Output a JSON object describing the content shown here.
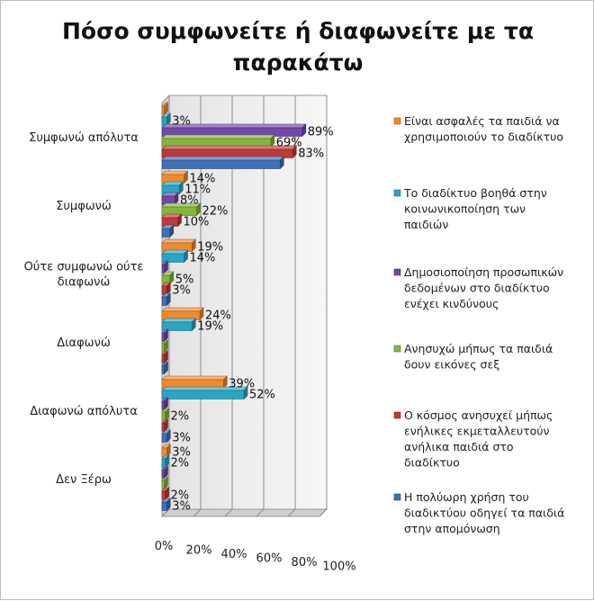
{
  "chart_data": {
    "type": "bar",
    "orientation": "horizontal",
    "title_lines": [
      "Πόσο συμφωνείτε ή διαφωνείτε με τα",
      "παρακάτω"
    ],
    "categories": [
      "Συμφωνώ απόλυτα",
      "Συμφωνώ",
      "Ούτε συμφωνώ ούτε διαφωνώ",
      "Διαφωνώ",
      "Διαφωνώ απόλυτα",
      "Δεν Ξέρω"
    ],
    "category_label_lines": [
      [
        "Συμφωνώ απόλυτα"
      ],
      [
        "Συμφωνώ"
      ],
      [
        "Ούτε συμφωνώ ούτε",
        "διαφωνώ"
      ],
      [
        "Διαφωνώ"
      ],
      [
        "Διαφωνώ απόλυτα"
      ],
      [
        "Δεν Ξέρω"
      ]
    ],
    "series": [
      {
        "name": "Είναι ασφαλές τα παιδιά να χρησιμοποιούν το διαδίκτυο",
        "legend_lines": [
          "Είναι ασφαλές τα παιδιά να",
          "χρησιμοποιούν το διαδίκτυο"
        ],
        "color": "#f08a2c",
        "values": [
          1,
          14,
          19,
          24,
          39,
          3
        ],
        "labels": [
          "",
          "14%",
          "19%",
          "24%",
          "39%",
          "3%"
        ]
      },
      {
        "name": "Το διαδίκτυο βοηθά στην κοινωνικοποίηση των παιδιών",
        "legend_lines": [
          "Το διαδίκτυο βοηθά στην",
          "κοινωνικοποίηση των",
          "παιδιών"
        ],
        "color": "#2aa6c2",
        "values": [
          3,
          11,
          14,
          19,
          52,
          2
        ],
        "labels": [
          "3%",
          "11%",
          "14%",
          "19%",
          "52%",
          "2%"
        ]
      },
      {
        "name": "Δημοσιοποίηση προσωπικών δεδομένων στο διαδίκτυο ενέχει κινδύνους",
        "legend_lines": [
          "Δημοσιοποίηση προσωπικών",
          "δεδομένων στο διαδίκτυο",
          "ενέχει κινδύνους"
        ],
        "color": "#7248a8",
        "values": [
          89,
          8,
          0,
          0,
          0,
          0
        ],
        "labels": [
          "89%",
          "8%",
          "",
          "",
          "",
          ""
        ]
      },
      {
        "name": "Ανησυχώ μήπως τα παιδιά δουν εικόνες σεξ",
        "legend_lines": [
          "Ανησυχώ μήπως τα παιδιά",
          "δουν εικόνες σεξ"
        ],
        "color": "#86b53c",
        "values": [
          69,
          22,
          5,
          0,
          2,
          0
        ],
        "labels": [
          "69%",
          "22%",
          "5%",
          "",
          "2%",
          ""
        ]
      },
      {
        "name": "Ο κόσμος ανησυχεί μήπως ενήλικες εκμεταλλευτούν ανήλικα παιδιά στο διαδίκτυο",
        "legend_lines": [
          "Ο κόσμος ανησυχεί μήπως",
          "ενήλικες εκμεταλλευτούν",
          "ανήλικα παιδιά στο",
          "διαδίκτυο"
        ],
        "color": "#c0393a",
        "values": [
          83,
          10,
          3,
          0,
          0,
          2
        ],
        "labels": [
          "83%",
          "10%",
          "3%",
          "",
          "",
          "2%"
        ]
      },
      {
        "name": "Η πολύωρη χρήση του διαδικτύου οδηγεί τα παιδιά στην απομόνωση",
        "legend_lines": [
          "Η πολύωρη χρήση του",
          "διαδικτύου οδηγεί τα παιδιά",
          "στην απομόνωση"
        ],
        "color": "#3f6fb5",
        "values": [
          75,
          5,
          3,
          0,
          3,
          3
        ],
        "labels": [
          "",
          "",
          "",
          "",
          "3%",
          "3%"
        ]
      }
    ],
    "x_ticks": [
      "0%",
      "20%",
      "40%",
      "60%",
      "80%",
      "100%"
    ],
    "xlim": [
      0,
      100
    ],
    "grid": true,
    "legend_position": "right"
  }
}
